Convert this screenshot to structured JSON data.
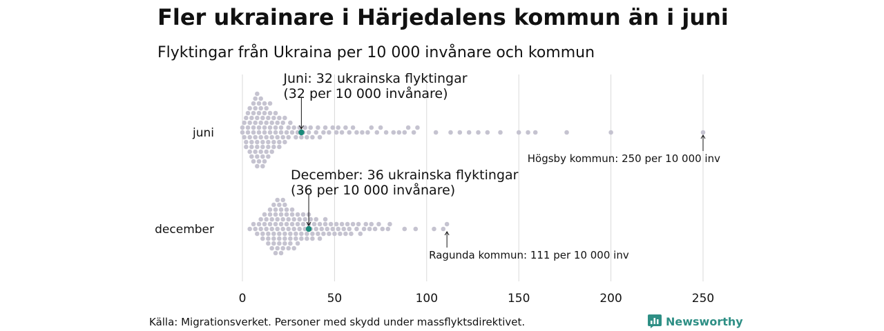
{
  "title": "Fler ukrainare i Härjedalens kommun än i juni",
  "subtitle": "Flyktingar från Ukraina per 10 000 invånare och kommun",
  "footer": "Källa: Migrationsverket. Personer med skydd under massflyktsdirektivet.",
  "logo": {
    "text": "Newsworthy",
    "icon": "bar-chart-icon",
    "color": "#2e8f85"
  },
  "colors": {
    "dot": "#c5c3d0",
    "highlight": "#1a8a7a",
    "grid": "#d9d9d9"
  },
  "chart_data": {
    "type": "scatter",
    "subtype": "beeswarm",
    "xlim": [
      0,
      260
    ],
    "x_ticks": [
      0,
      50,
      100,
      150,
      200,
      250
    ],
    "grid": true,
    "categories": [
      "juni",
      "december"
    ],
    "series": [
      {
        "name": "juni",
        "values": [
          0,
          0,
          1,
          1,
          2,
          2,
          2,
          3,
          3,
          3,
          4,
          4,
          4,
          4,
          5,
          5,
          5,
          5,
          6,
          6,
          6,
          6,
          6,
          7,
          7,
          7,
          7,
          7,
          8,
          8,
          8,
          8,
          8,
          8,
          9,
          9,
          9,
          9,
          9,
          10,
          10,
          10,
          10,
          10,
          11,
          11,
          11,
          11,
          11,
          12,
          12,
          12,
          12,
          12,
          13,
          13,
          13,
          13,
          14,
          14,
          14,
          14,
          15,
          15,
          15,
          15,
          16,
          16,
          16,
          17,
          17,
          17,
          18,
          18,
          18,
          19,
          19,
          20,
          20,
          20,
          21,
          21,
          22,
          22,
          23,
          23,
          24,
          25,
          25,
          26,
          27,
          28,
          29,
          30,
          31,
          32,
          33,
          34,
          35,
          36,
          37,
          38,
          40,
          41,
          42,
          44,
          45,
          47,
          49,
          51,
          52,
          54,
          56,
          58,
          60,
          62,
          65,
          68,
          70,
          73,
          75,
          78,
          82,
          85,
          88,
          90,
          93,
          95,
          105,
          113,
          118,
          123,
          128,
          133,
          140,
          150,
          155,
          159,
          176,
          200,
          250
        ],
        "highlight": {
          "value": 32,
          "label_line1": "Juni: 32 ukrainska flyktingar",
          "label_line2": "(32 per 10 000 invånare)"
        },
        "max_note": {
          "value": 250,
          "label": "Högsby kommun: 250 per 10 000 inv"
        }
      },
      {
        "name": "december",
        "values": [
          4,
          6,
          7,
          8,
          9,
          10,
          10,
          11,
          11,
          12,
          12,
          13,
          13,
          14,
          14,
          14,
          15,
          15,
          15,
          16,
          16,
          16,
          17,
          17,
          17,
          17,
          18,
          18,
          18,
          18,
          19,
          19,
          19,
          19,
          20,
          20,
          20,
          20,
          21,
          21,
          21,
          21,
          22,
          22,
          22,
          22,
          23,
          23,
          23,
          23,
          24,
          24,
          24,
          25,
          25,
          25,
          26,
          26,
          26,
          27,
          27,
          27,
          28,
          28,
          28,
          29,
          29,
          30,
          30,
          30,
          31,
          31,
          32,
          32,
          33,
          33,
          34,
          34,
          35,
          35,
          36,
          36,
          37,
          37,
          38,
          38,
          39,
          40,
          40,
          41,
          42,
          42,
          43,
          44,
          45,
          45,
          46,
          47,
          48,
          49,
          50,
          51,
          52,
          53,
          54,
          55,
          56,
          57,
          58,
          59,
          60,
          62,
          63,
          64,
          66,
          67,
          69,
          70,
          72,
          74,
          76,
          79,
          80,
          88,
          94,
          104,
          109,
          111
        ],
        "highlight": {
          "value": 36,
          "label_line1": "December: 36 ukrainska flyktingar",
          "label_line2": "(36 per 10 000 invånare)"
        },
        "max_note": {
          "value": 111,
          "label": "Ragunda kommun: 111 per 10 000 inv"
        }
      }
    ]
  }
}
